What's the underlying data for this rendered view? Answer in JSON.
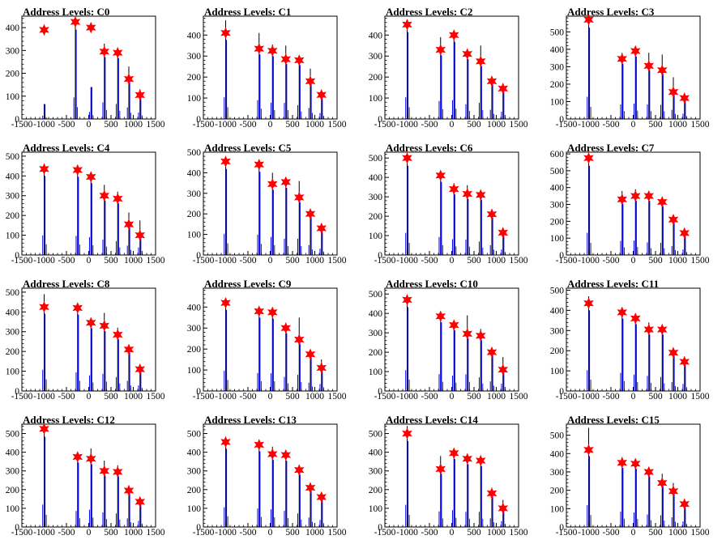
{
  "chart_data": [
    {
      "type": "bar",
      "title": "Address Levels: C0",
      "xlim": [
        -1500,
        1500
      ],
      "ylim": [
        0,
        450
      ],
      "yticks": [
        0,
        100,
        200,
        300,
        400
      ],
      "xticks": [
        -1500,
        -1000,
        -500,
        0,
        500,
        1000,
        1500
      ],
      "peaks": [
        {
          "x": -1000,
          "hist_max": 65,
          "marker": 390
        },
        {
          "x": -300,
          "hist_max": 430,
          "marker": 425
        },
        {
          "x": 50,
          "hist_max": 140,
          "marker": 400
        },
        {
          "x": 350,
          "hist_max": 330,
          "marker": 295
        },
        {
          "x": 650,
          "hist_max": 300,
          "marker": 290
        },
        {
          "x": 900,
          "hist_max": 230,
          "marker": 175
        },
        {
          "x": 1150,
          "hist_max": 130,
          "marker": 105
        }
      ]
    },
    {
      "type": "bar",
      "title": "Address Levels: C1",
      "xlim": [
        -1500,
        1500
      ],
      "ylim": [
        0,
        490
      ],
      "yticks": [
        0,
        100,
        200,
        300,
        400
      ],
      "xticks": [
        -1500,
        -1000,
        -500,
        0,
        500,
        1000,
        1500
      ],
      "peaks": [
        {
          "x": -1000,
          "hist_max": 470,
          "marker": 410
        },
        {
          "x": -250,
          "hist_max": 410,
          "marker": 335
        },
        {
          "x": 50,
          "hist_max": 355,
          "marker": 325
        },
        {
          "x": 350,
          "hist_max": 350,
          "marker": 285
        },
        {
          "x": 650,
          "hist_max": 300,
          "marker": 280
        },
        {
          "x": 900,
          "hist_max": 240,
          "marker": 180
        },
        {
          "x": 1150,
          "hist_max": 130,
          "marker": 115
        }
      ]
    },
    {
      "type": "bar",
      "title": "Address Levels: C2",
      "xlim": [
        -1500,
        1500
      ],
      "ylim": [
        0,
        490
      ],
      "yticks": [
        0,
        100,
        200,
        300,
        400
      ],
      "xticks": [
        -1500,
        -1000,
        -500,
        0,
        500,
        1000,
        1500
      ],
      "peaks": [
        {
          "x": -1000,
          "hist_max": 470,
          "marker": 450
        },
        {
          "x": -250,
          "hist_max": 390,
          "marker": 330
        },
        {
          "x": 50,
          "hist_max": 410,
          "marker": 400
        },
        {
          "x": 350,
          "hist_max": 320,
          "marker": 310
        },
        {
          "x": 650,
          "hist_max": 350,
          "marker": 275
        },
        {
          "x": 900,
          "hist_max": 200,
          "marker": 180
        },
        {
          "x": 1150,
          "hist_max": 160,
          "marker": 145
        }
      ]
    },
    {
      "type": "bar",
      "title": "Address Levels: C3",
      "xlim": [
        -1500,
        1500
      ],
      "ylim": [
        0,
        590
      ],
      "yticks": [
        0,
        100,
        200,
        300,
        400,
        500
      ],
      "xticks": [
        -1500,
        -1000,
        -500,
        0,
        500,
        1000,
        1500
      ],
      "peaks": [
        {
          "x": -1000,
          "hist_max": 580,
          "marker": 570
        },
        {
          "x": -250,
          "hist_max": 380,
          "marker": 345
        },
        {
          "x": 50,
          "hist_max": 400,
          "marker": 390
        },
        {
          "x": 350,
          "hist_max": 380,
          "marker": 305
        },
        {
          "x": 650,
          "hist_max": 370,
          "marker": 280
        },
        {
          "x": 900,
          "hist_max": 240,
          "marker": 155
        },
        {
          "x": 1150,
          "hist_max": 140,
          "marker": 120
        }
      ]
    },
    {
      "type": "bar",
      "title": "Address Levels: C4",
      "xlim": [
        -1500,
        1500
      ],
      "ylim": [
        0,
        520
      ],
      "yticks": [
        0,
        100,
        200,
        300,
        400,
        500
      ],
      "xticks": [
        -1500,
        -1000,
        -500,
        0,
        500,
        1000,
        1500
      ],
      "peaks": [
        {
          "x": -1000,
          "hist_max": 450,
          "marker": 435
        },
        {
          "x": -250,
          "hist_max": 440,
          "marker": 430
        },
        {
          "x": 50,
          "hist_max": 410,
          "marker": 395
        },
        {
          "x": 350,
          "hist_max": 355,
          "marker": 300
        },
        {
          "x": 650,
          "hist_max": 320,
          "marker": 285
        },
        {
          "x": 900,
          "hist_max": 215,
          "marker": 155
        },
        {
          "x": 1150,
          "hist_max": 175,
          "marker": 100
        }
      ]
    },
    {
      "type": "bar",
      "title": "Address Levels: C5",
      "xlim": [
        -1500,
        1500
      ],
      "ylim": [
        0,
        500
      ],
      "yticks": [
        0,
        100,
        200,
        300,
        400,
        500
      ],
      "xticks": [
        -1500,
        -1000,
        -500,
        0,
        500,
        1000,
        1500
      ],
      "peaks": [
        {
          "x": -1000,
          "hist_max": 470,
          "marker": 455
        },
        {
          "x": -250,
          "hist_max": 450,
          "marker": 440
        },
        {
          "x": 50,
          "hist_max": 400,
          "marker": 345
        },
        {
          "x": 350,
          "hist_max": 360,
          "marker": 355
        },
        {
          "x": 650,
          "hist_max": 360,
          "marker": 280
        },
        {
          "x": 900,
          "hist_max": 220,
          "marker": 200
        },
        {
          "x": 1150,
          "hist_max": 140,
          "marker": 130
        }
      ]
    },
    {
      "type": "bar",
      "title": "Address Levels: C6",
      "xlim": [
        -1500,
        1500
      ],
      "ylim": [
        0,
        530
      ],
      "yticks": [
        0,
        100,
        200,
        300,
        400,
        500
      ],
      "xticks": [
        -1500,
        -1000,
        -500,
        0,
        500,
        1000,
        1500
      ],
      "peaks": [
        {
          "x": -1000,
          "hist_max": 520,
          "marker": 500
        },
        {
          "x": -250,
          "hist_max": 420,
          "marker": 410
        },
        {
          "x": 50,
          "hist_max": 370,
          "marker": 340
        },
        {
          "x": 350,
          "hist_max": 360,
          "marker": 315
        },
        {
          "x": 650,
          "hist_max": 315,
          "marker": 310
        },
        {
          "x": 900,
          "hist_max": 230,
          "marker": 210
        },
        {
          "x": 1150,
          "hist_max": 130,
          "marker": 115
        }
      ]
    },
    {
      "type": "bar",
      "title": "Address Levels: C7",
      "xlim": [
        -1500,
        1500
      ],
      "ylim": [
        0,
        610
      ],
      "yticks": [
        0,
        100,
        200,
        300,
        400,
        500,
        600
      ],
      "xticks": [
        -1500,
        -1000,
        -500,
        0,
        500,
        1000,
        1500
      ],
      "peaks": [
        {
          "x": -1000,
          "hist_max": 600,
          "marker": 575
        },
        {
          "x": -250,
          "hist_max": 380,
          "marker": 330
        },
        {
          "x": 50,
          "hist_max": 390,
          "marker": 350
        },
        {
          "x": 350,
          "hist_max": 340,
          "marker": 350
        },
        {
          "x": 650,
          "hist_max": 330,
          "marker": 315
        },
        {
          "x": 900,
          "hist_max": 240,
          "marker": 210
        },
        {
          "x": 1150,
          "hist_max": 150,
          "marker": 130
        }
      ]
    },
    {
      "type": "bar",
      "title": "Address Levels: C8",
      "xlim": [
        -1500,
        1500
      ],
      "ylim": [
        0,
        520
      ],
      "yticks": [
        0,
        100,
        200,
        300,
        400,
        500
      ],
      "xticks": [
        -1500,
        -1000,
        -500,
        0,
        500,
        1000,
        1500
      ],
      "peaks": [
        {
          "x": -1000,
          "hist_max": 490,
          "marker": 425
        },
        {
          "x": -250,
          "hist_max": 430,
          "marker": 420
        },
        {
          "x": 50,
          "hist_max": 360,
          "marker": 345
        },
        {
          "x": 350,
          "hist_max": 395,
          "marker": 330
        },
        {
          "x": 650,
          "hist_max": 320,
          "marker": 285
        },
        {
          "x": 900,
          "hist_max": 230,
          "marker": 210
        },
        {
          "x": 1150,
          "hist_max": 130,
          "marker": 110
        }
      ]
    },
    {
      "type": "bar",
      "title": "Address Levels: C9",
      "xlim": [
        -1500,
        1500
      ],
      "ylim": [
        0,
        490
      ],
      "yticks": [
        0,
        100,
        200,
        300,
        400
      ],
      "xticks": [
        -1500,
        -1000,
        -500,
        0,
        500,
        1000,
        1500
      ],
      "peaks": [
        {
          "x": -1000,
          "hist_max": 440,
          "marker": 420
        },
        {
          "x": -250,
          "hist_max": 390,
          "marker": 380
        },
        {
          "x": 50,
          "hist_max": 385,
          "marker": 375
        },
        {
          "x": 350,
          "hist_max": 305,
          "marker": 300
        },
        {
          "x": 650,
          "hist_max": 350,
          "marker": 245
        },
        {
          "x": 900,
          "hist_max": 180,
          "marker": 175
        },
        {
          "x": 1150,
          "hist_max": 150,
          "marker": 110
        }
      ]
    },
    {
      "type": "bar",
      "title": "Address Levels: C10",
      "xlim": [
        -1500,
        1500
      ],
      "ylim": [
        0,
        530
      ],
      "yticks": [
        0,
        100,
        200,
        300,
        400,
        500
      ],
      "xticks": [
        -1500,
        -1000,
        -500,
        0,
        500,
        1000,
        1500
      ],
      "peaks": [
        {
          "x": -1000,
          "hist_max": 490,
          "marker": 470
        },
        {
          "x": -250,
          "hist_max": 395,
          "marker": 385
        },
        {
          "x": 50,
          "hist_max": 360,
          "marker": 340
        },
        {
          "x": 350,
          "hist_max": 390,
          "marker": 295
        },
        {
          "x": 650,
          "hist_max": 320,
          "marker": 285
        },
        {
          "x": 900,
          "hist_max": 225,
          "marker": 200
        },
        {
          "x": 1150,
          "hist_max": 175,
          "marker": 110
        }
      ]
    },
    {
      "type": "bar",
      "title": "Address Levels: C11",
      "xlim": [
        -1500,
        1500
      ],
      "ylim": [
        0,
        510
      ],
      "yticks": [
        0,
        100,
        200,
        300,
        400,
        500
      ],
      "xticks": [
        -1500,
        -1000,
        -500,
        0,
        500,
        1000,
        1500
      ],
      "peaks": [
        {
          "x": -1000,
          "hist_max": 470,
          "marker": 435
        },
        {
          "x": -250,
          "hist_max": 410,
          "marker": 390
        },
        {
          "x": 50,
          "hist_max": 370,
          "marker": 360
        },
        {
          "x": 350,
          "hist_max": 340,
          "marker": 305
        },
        {
          "x": 650,
          "hist_max": 315,
          "marker": 305
        },
        {
          "x": 900,
          "hist_max": 200,
          "marker": 190
        },
        {
          "x": 1150,
          "hist_max": 160,
          "marker": 145
        }
      ]
    },
    {
      "type": "bar",
      "title": "Address Levels: C12",
      "xlim": [
        -1500,
        1500
      ],
      "ylim": [
        0,
        550
      ],
      "yticks": [
        0,
        100,
        200,
        300,
        400,
        500
      ],
      "xticks": [
        -1500,
        -1000,
        -500,
        0,
        500,
        1000,
        1500
      ],
      "peaks": [
        {
          "x": -1000,
          "hist_max": 545,
          "marker": 525
        },
        {
          "x": -250,
          "hist_max": 390,
          "marker": 375
        },
        {
          "x": 50,
          "hist_max": 420,
          "marker": 365
        },
        {
          "x": 350,
          "hist_max": 355,
          "marker": 300
        },
        {
          "x": 650,
          "hist_max": 330,
          "marker": 295
        },
        {
          "x": 900,
          "hist_max": 210,
          "marker": 195
        },
        {
          "x": 1150,
          "hist_max": 150,
          "marker": 135
        }
      ]
    },
    {
      "type": "bar",
      "title": "Address Levels: C13",
      "xlim": [
        -1500,
        1500
      ],
      "ylim": [
        0,
        550
      ],
      "yticks": [
        0,
        100,
        200,
        300,
        400,
        500
      ],
      "xticks": [
        -1500,
        -1000,
        -500,
        0,
        500,
        1000,
        1500
      ],
      "peaks": [
        {
          "x": -1000,
          "hist_max": 480,
          "marker": 455
        },
        {
          "x": -250,
          "hist_max": 450,
          "marker": 440
        },
        {
          "x": 50,
          "hist_max": 430,
          "marker": 390
        },
        {
          "x": 350,
          "hist_max": 395,
          "marker": 385
        },
        {
          "x": 650,
          "hist_max": 330,
          "marker": 305
        },
        {
          "x": 900,
          "hist_max": 230,
          "marker": 210
        },
        {
          "x": 1150,
          "hist_max": 170,
          "marker": 160
        }
      ]
    },
    {
      "type": "bar",
      "title": "Address Levels: C14",
      "xlim": [
        -1500,
        1500
      ],
      "ylim": [
        0,
        550
      ],
      "yticks": [
        0,
        100,
        200,
        300,
        400,
        500
      ],
      "xticks": [
        -1500,
        -1000,
        -500,
        0,
        500,
        1000,
        1500
      ],
      "peaks": [
        {
          "x": -1000,
          "hist_max": 540,
          "marker": 500
        },
        {
          "x": -250,
          "hist_max": 380,
          "marker": 310
        },
        {
          "x": 50,
          "hist_max": 410,
          "marker": 395
        },
        {
          "x": 350,
          "hist_max": 370,
          "marker": 365
        },
        {
          "x": 650,
          "hist_max": 370,
          "marker": 355
        },
        {
          "x": 900,
          "hist_max": 210,
          "marker": 180
        },
        {
          "x": 1150,
          "hist_max": 145,
          "marker": 100
        }
      ]
    },
    {
      "type": "bar",
      "title": "Address Levels: C15",
      "xlim": [
        -1500,
        1500
      ],
      "ylim": [
        0,
        560
      ],
      "yticks": [
        0,
        100,
        200,
        300,
        400,
        500
      ],
      "xticks": [
        -1500,
        -1000,
        -500,
        0,
        500,
        1000,
        1500
      ],
      "peaks": [
        {
          "x": -1000,
          "hist_max": 540,
          "marker": 420
        },
        {
          "x": -250,
          "hist_max": 380,
          "marker": 350
        },
        {
          "x": 50,
          "hist_max": 360,
          "marker": 345
        },
        {
          "x": 350,
          "hist_max": 310,
          "marker": 300
        },
        {
          "x": 650,
          "hist_max": 290,
          "marker": 240
        },
        {
          "x": 900,
          "hist_max": 240,
          "marker": 195
        },
        {
          "x": 1150,
          "hist_max": 140,
          "marker": 125
        }
      ]
    }
  ],
  "colors": {
    "hist_line": "#000000",
    "hist_fill": "#0000ff",
    "marker": "#ff0000",
    "axis": "#000000"
  }
}
